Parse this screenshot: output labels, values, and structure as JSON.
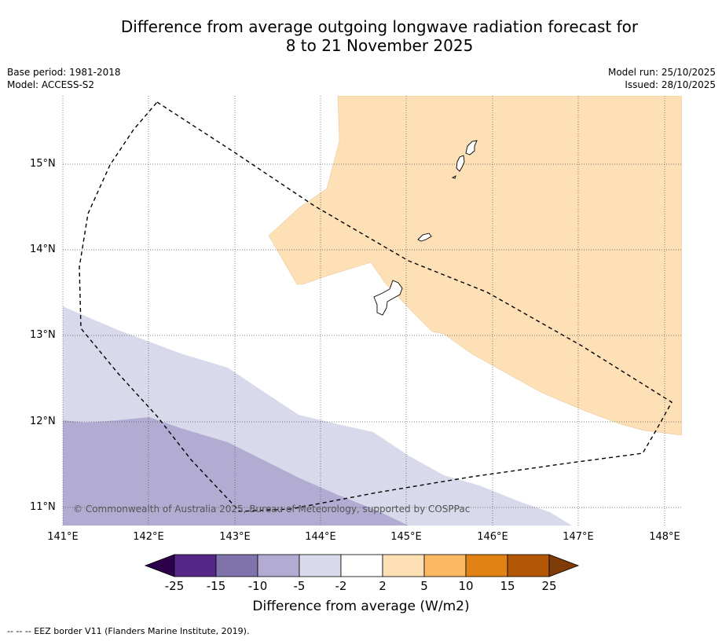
{
  "title": {
    "line1": "Difference from average outgoing longwave radiation forecast for",
    "line2": "8 to 21 November 2025"
  },
  "meta_left": {
    "base_period": "Base period: 1981-2018",
    "model": "Model: ACCESS-S2"
  },
  "meta_right": {
    "model_run": "Model run: 25/10/2025",
    "issued": "Issued: 28/10/2025"
  },
  "latitude_labels": [
    "15°N",
    "14°N",
    "13°N",
    "12°N",
    "11°N"
  ],
  "longitude_labels": [
    "141°E",
    "142°E",
    "143°E",
    "144°E",
    "145°E",
    "146°E",
    "147°E",
    "148°E"
  ],
  "credit": "© Commonwealth of Australia 2025, Bureau of Meteorology, supported by COSPPac",
  "legend": {
    "title": "Difference from average (W/m2)",
    "ticks": [
      "-25",
      "-15",
      "-10",
      "-5",
      "-2",
      "2",
      "5",
      "10",
      "15",
      "25"
    ],
    "colors": {
      "below_min": "#2d004b",
      "bins": [
        "#542788",
        "#8073ac",
        "#b2abd2",
        "#d8daeb",
        "#ffffff",
        "#fee0b6",
        "#fdb863",
        "#e08214",
        "#b35806"
      ],
      "above_max": "#7f3b08"
    }
  },
  "footnote": "--  --  -- EEZ border V11 (Flanders Marine Institute, 2019)."
}
